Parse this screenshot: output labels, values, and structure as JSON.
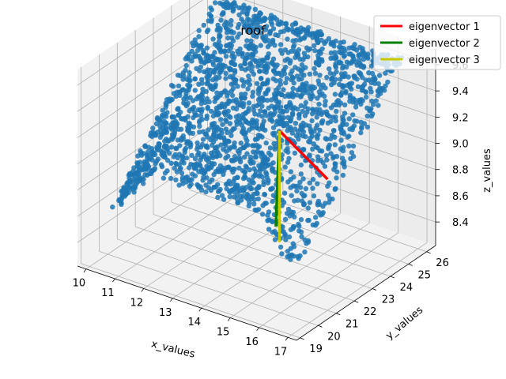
{
  "chart_data": {
    "type": "scatter",
    "projection": "3d",
    "title": "roof",
    "xlabel": "x_values",
    "ylabel": "y_values",
    "zlabel": "z_values",
    "xlim": [
      9.7,
      17.3
    ],
    "ylim": [
      18.8,
      26.5
    ],
    "zlim": [
      8.22,
      9.72
    ],
    "x_ticks": [
      10,
      11,
      12,
      13,
      14,
      15,
      16,
      17
    ],
    "y_ticks": [
      19,
      20,
      21,
      22,
      23,
      24,
      25,
      26
    ],
    "z_ticks": [
      8.4,
      8.6,
      8.8,
      9.0,
      9.2,
      9.4,
      9.6
    ],
    "z_tick_labels": [
      "8.4",
      "8.6",
      "8.8",
      "9.0",
      "9.2",
      "9.4",
      "9.6"
    ],
    "grid": true,
    "legend_position": "top-right",
    "points": {
      "color": "#1f77b4",
      "x_range": [
        10.2,
        16.6
      ],
      "y_range": [
        19.8,
        26.0
      ],
      "ridge_z": 9.62,
      "eave_z": 8.45
    },
    "series": [
      {
        "name": "eigenvector 1",
        "color": "#ff0000",
        "start": [
          13.7,
          23.6,
          9.1
        ],
        "end": [
          17.0,
          21.0,
          9.22
        ]
      },
      {
        "name": "eigenvector 2",
        "color": "#008000",
        "start": [
          13.7,
          23.6,
          9.1
        ],
        "end": [
          14.2,
          22.6,
          8.5
        ]
      },
      {
        "name": "eigenvector 3",
        "color": "#c8c800",
        "start": [
          13.7,
          23.6,
          9.1
        ],
        "end": [
          13.7,
          23.6,
          8.25
        ]
      }
    ]
  }
}
